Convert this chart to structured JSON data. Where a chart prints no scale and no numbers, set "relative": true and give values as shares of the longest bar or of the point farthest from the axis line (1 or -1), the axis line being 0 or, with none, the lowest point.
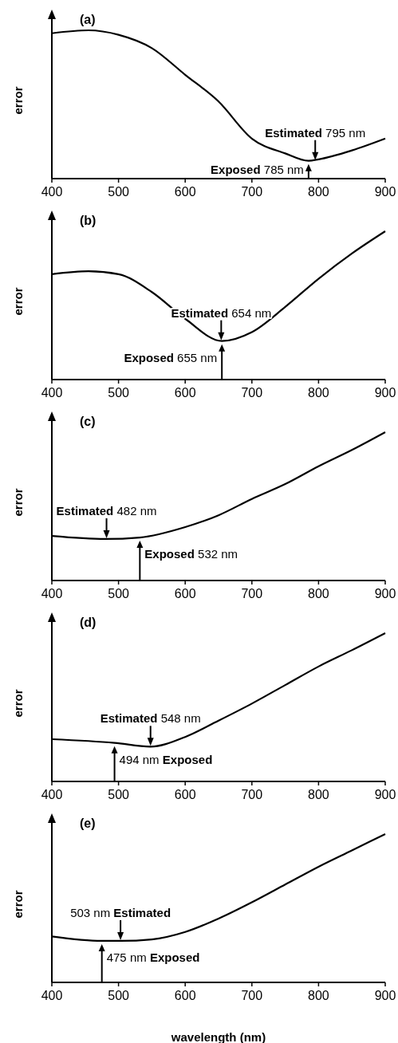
{
  "chart_data": [
    {
      "type": "line",
      "title": "(a)",
      "ylabel": "error",
      "relative": true,
      "xlim": [
        400,
        900
      ],
      "xticks": [
        400,
        500,
        600,
        700,
        800,
        900
      ],
      "x": [
        400,
        455,
        500,
        550,
        600,
        650,
        700,
        750,
        785,
        800,
        850,
        900
      ],
      "series": [
        {
          "color": "#000000",
          "values": [
            0.98,
            1,
            0.97,
            0.88,
            0.7,
            0.52,
            0.27,
            0.17,
            0.12,
            0.13,
            0.19,
            0.27
          ]
        }
      ],
      "annotations": [
        {
          "text": "Estimated 795 nm",
          "x": 795,
          "y": 0.12
        },
        {
          "text": "Exposed 785 nm",
          "x": 785,
          "y": 0.12
        }
      ]
    },
    {
      "type": "line",
      "title": "(b)",
      "ylabel": "error",
      "relative": true,
      "xlim": [
        400,
        900
      ],
      "xticks": [
        400,
        500,
        600,
        700,
        800,
        900
      ],
      "x": [
        400,
        455,
        500,
        550,
        600,
        655,
        700,
        750,
        800,
        850,
        900
      ],
      "series": [
        {
          "color": "#000000",
          "values": [
            0.71,
            0.73,
            0.71,
            0.59,
            0.41,
            0.26,
            0.32,
            0.49,
            0.68,
            0.85,
            1
          ]
        }
      ],
      "annotations": [
        {
          "text": "Estimated 654 nm",
          "x": 654,
          "y": 0.26
        },
        {
          "text": "Exposed 655 nm",
          "x": 655,
          "y": 0.26
        }
      ]
    },
    {
      "type": "line",
      "title": "(c)",
      "ylabel": "error",
      "relative": true,
      "xlim": [
        400,
        900
      ],
      "xticks": [
        400,
        500,
        600,
        700,
        800,
        900
      ],
      "x": [
        400,
        480,
        532,
        600,
        650,
        700,
        750,
        800,
        850,
        900
      ],
      "series": [
        {
          "color": "#000000",
          "values": [
            0.3,
            0.28,
            0.29,
            0.36,
            0.44,
            0.55,
            0.65,
            0.77,
            0.88,
            1
          ]
        }
      ],
      "annotations": [
        {
          "text": "Estimated 482 nm",
          "x": 482,
          "y": 0.28
        },
        {
          "text": "Exposed 532 nm",
          "x": 532,
          "y": 0.29
        }
      ]
    },
    {
      "type": "line",
      "title": "(d)",
      "ylabel": "error",
      "relative": true,
      "xlim": [
        400,
        900
      ],
      "xticks": [
        400,
        500,
        600,
        700,
        800,
        900
      ],
      "x": [
        400,
        494,
        548,
        600,
        650,
        700,
        750,
        800,
        850,
        900
      ],
      "series": [
        {
          "color": "#000000",
          "values": [
            0.285,
            0.26,
            0.235,
            0.3,
            0.41,
            0.525,
            0.65,
            0.775,
            0.885,
            1
          ]
        }
      ],
      "annotations": [
        {
          "text": "Estimated 548 nm",
          "x": 548,
          "y": 0.235
        },
        {
          "text": "494 nm Exposed",
          "x": 494,
          "y": 0.26
        }
      ]
    },
    {
      "type": "line",
      "title": "(e)",
      "ylabel": "error",
      "xlabel": "wavelength (nm)",
      "relative": true,
      "xlim": [
        400,
        900
      ],
      "xticks": [
        400,
        500,
        600,
        700,
        800,
        900
      ],
      "x": [
        400,
        475,
        503,
        550,
        600,
        650,
        700,
        750,
        800,
        850,
        900
      ],
      "series": [
        {
          "color": "#000000",
          "values": [
            0.31,
            0.28,
            0.28,
            0.29,
            0.34,
            0.43,
            0.54,
            0.66,
            0.78,
            0.89,
            1
          ]
        }
      ],
      "annotations": [
        {
          "text": "503 nm Estimated",
          "x": 503,
          "y": 0.28
        },
        {
          "text": "475 nm Exposed",
          "x": 475,
          "y": 0.28
        }
      ]
    }
  ]
}
